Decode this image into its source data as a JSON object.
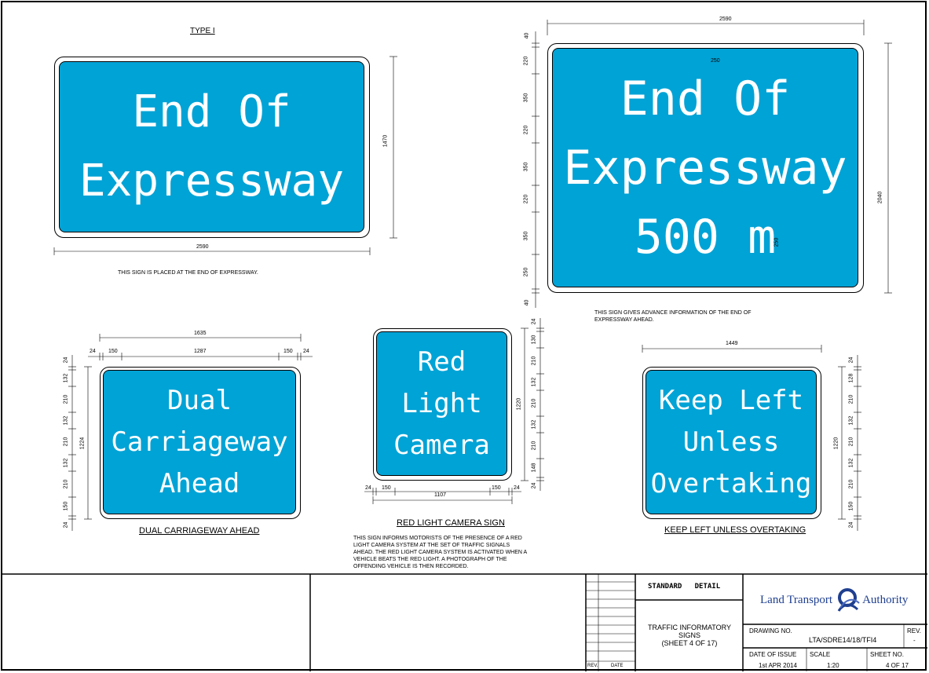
{
  "type_label": "TYPE I",
  "sign1": {
    "lines": [
      "End Of",
      "Expressway"
    ],
    "width_dim": "2590",
    "height_dim": "1470",
    "note": "THIS SIGN IS PLACED AT THE END OF EXPRESSWAY."
  },
  "sign2": {
    "lines": [
      "End Of",
      "Expressway",
      "500 m"
    ],
    "width_dim": "2590",
    "height_dim": "2040",
    "letter_dim": "250",
    "digit_dim": "250",
    "side_dims": [
      "40",
      "220",
      "350",
      "220",
      "350",
      "220",
      "350",
      "250",
      "40"
    ],
    "note": "THIS SIGN GIVES ADVANCE INFORMATION OF THE END OF\nEXPRESSWAY AHEAD."
  },
  "sign3": {
    "lines": [
      "Dual",
      "Carriageway",
      "Ahead"
    ],
    "caption": "DUAL CARRIAGEWAY AHEAD",
    "top_dim": "1635",
    "row_dims": [
      "24",
      "150",
      "1287",
      "150",
      "24"
    ],
    "height_dim": "1224",
    "side_dims": [
      "24",
      "132",
      "210",
      "132",
      "210",
      "132",
      "210",
      "150",
      "24"
    ]
  },
  "sign4": {
    "lines": [
      "Red",
      "Light",
      "Camera"
    ],
    "caption": "RED LIGHT CAMERA SIGN",
    "bottom_dims": [
      "24",
      "150",
      "150",
      "24"
    ],
    "width_dim": "1107",
    "height_dim": "1220",
    "side_dims": [
      "24",
      "130",
      "210",
      "132",
      "210",
      "132",
      "210",
      "148",
      "24"
    ],
    "note": "THIS SIGN INFORMS MOTORISTS OF THE PRESENCE OF A RED\nLIGHT CAMERA SYSTEM AT THE SET OF TRAFFIC SIGNALS\nAHEAD. THE RED LIGHT CAMERA SYSTEM IS ACTIVATED WHEN A\nVEHICLE BEATS THE RED LIGHT. A PHOTOGRAPH OF THE\nOFFENDING VEHICLE IS THEN RECORDED."
  },
  "sign5": {
    "lines": [
      "Keep Left",
      "Unless",
      "Overtaking"
    ],
    "caption": "KEEP LEFT UNLESS OVERTAKING",
    "top_dim": "1449",
    "height_dim": "1220",
    "side_dims": [
      "24",
      "128",
      "210",
      "132",
      "210",
      "132",
      "210",
      "150",
      "24"
    ]
  },
  "title_block": {
    "rev_label": "REV.",
    "date_label": "DATE",
    "standard_detail": "STANDARD   DETAIL",
    "drawing_title": "TRAFFIC INFORMATORY\nSIGNS\n(SHEET 4 OF 17)",
    "logo_left": "Land Transport",
    "logo_right": "Authority",
    "drawing_no_label": "DRAWING NO.",
    "drawing_no": "LTA/SDRE14/18/TFI4",
    "rev_head": "REV.",
    "rev_value": "-",
    "date_issue_label": "DATE OF ISSUE",
    "date_issue": "1st APR 2014",
    "scale_label": "SCALE",
    "scale": "1:20",
    "sheet_label": "SHEET NO.",
    "sheet": "4 OF 17"
  },
  "colors": {
    "sign_blue": "#00a3d6",
    "logo_blue": "#1f3f8f"
  }
}
